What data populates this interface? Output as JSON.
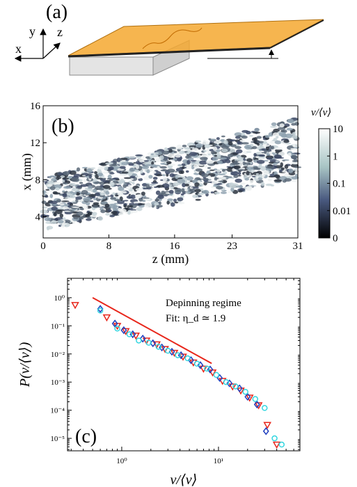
{
  "panel_a": {
    "label": "(a)",
    "axis_x": "x",
    "axis_y": "y",
    "axis_z": "z"
  },
  "chart_data": [
    {
      "type": "heatmap",
      "label": "(b)",
      "x_label": "z (mm)",
      "y_label": "x (mm)",
      "xlim": [
        0,
        31
      ],
      "xticks": [
        0,
        8,
        16,
        23,
        31
      ],
      "ylim": [
        1.7,
        16
      ],
      "yticks": [
        4,
        8,
        12,
        16
      ],
      "colorbar_label": "v/⟨v⟩",
      "colorbar_ticks": [
        10,
        1,
        0.1,
        0.01,
        0
      ]
    },
    {
      "type": "scatter",
      "label": "(c)",
      "x_label": "v/⟨v⟩",
      "y_label": "P(v/⟨v⟩)",
      "log_x": true,
      "log_y": true,
      "xlim": [
        0.275,
        69.5
      ],
      "xticks": [
        {
          "value": 1,
          "label": "10⁰"
        },
        {
          "value": 10,
          "label": "10¹"
        }
      ],
      "ylim": [
        3.6e-06,
        4.9
      ],
      "yticks": [
        {
          "value": 1,
          "label": "10⁰"
        },
        {
          "value": 0.1,
          "label": "10⁻¹"
        },
        {
          "value": 0.01,
          "label": "10⁻²"
        },
        {
          "value": 0.001,
          "label": "10⁻³"
        },
        {
          "value": 0.0001,
          "label": "10⁻⁴"
        },
        {
          "value": 1e-05,
          "label": "10⁻⁵"
        }
      ],
      "annotations": [
        "Depinning regime",
        "Fit: η_d ≃ 1.9"
      ],
      "fit_line": {
        "x": [
          0.5,
          8.5
        ],
        "y": [
          1.0,
          0.0046
        ],
        "color": "#e8261b"
      },
      "series": [
        {
          "color": "#e8261b",
          "marker": "triangle-down",
          "x": [
            0.33,
            0.7,
            0.9,
            1.1,
            1.4,
            1.8,
            2.3,
            2.8,
            3.5,
            4.3,
            5.5,
            7,
            8.7,
            11,
            14,
            17,
            21,
            26,
            32,
            40
          ],
          "values": [
            0.55,
            0.2,
            0.1,
            0.065,
            0.045,
            0.03,
            0.022,
            0.015,
            0.011,
            0.008,
            0.005,
            0.003,
            0.0022,
            0.0011,
            0.0007,
            0.0005,
            0.00028,
            0.00015,
            3e-05,
            6e-06
          ]
        },
        {
          "color": "#1f3fbf",
          "marker": "diamond",
          "x": [
            0.6,
            0.85,
            1.05,
            1.3,
            1.65,
            2.1,
            2.6,
            3.3,
            4.1,
            5.2,
            6.5,
            8.2,
            10.3,
            13,
            16.5,
            20,
            25,
            31
          ],
          "values": [
            0.4,
            0.12,
            0.07,
            0.05,
            0.035,
            0.024,
            0.017,
            0.012,
            0.009,
            0.006,
            0.004,
            0.0028,
            0.0014,
            0.0009,
            0.0006,
            0.0003,
            0.00016,
            1.8e-05
          ]
        },
        {
          "color": "#33d6e0",
          "marker": "circle",
          "x": [
            0.6,
            0.9,
            1.2,
            1.5,
            1.9,
            2.4,
            3,
            3.8,
            4.8,
            6,
            7.6,
            9.5,
            12,
            15,
            19,
            24,
            30,
            38,
            45
          ],
          "values": [
            0.35,
            0.08,
            0.05,
            0.03,
            0.025,
            0.018,
            0.013,
            0.009,
            0.007,
            0.0045,
            0.003,
            0.0018,
            0.001,
            0.0007,
            0.00045,
            0.00025,
            0.00012,
            1e-05,
            6e-06
          ]
        }
      ]
    }
  ]
}
